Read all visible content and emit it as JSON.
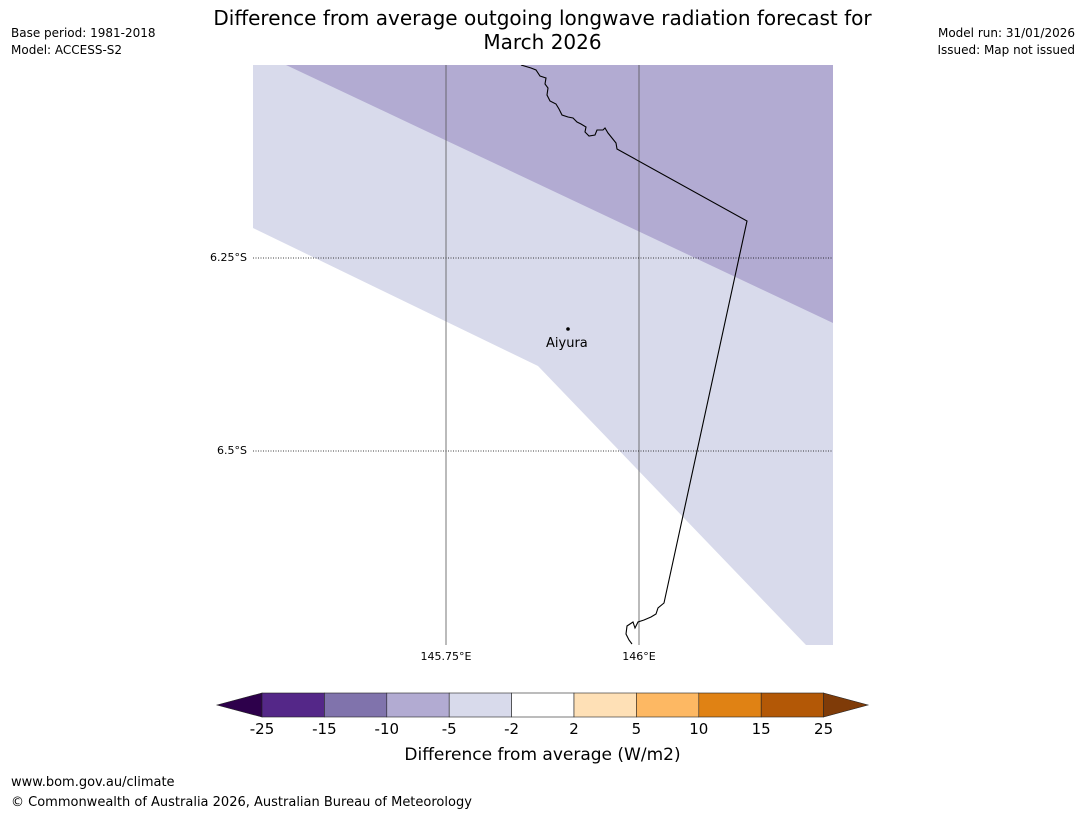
{
  "title_line1": "Difference from average outgoing longwave radiation forecast for",
  "title_line2": "March 2026",
  "base_period": "Base period: 1981-2018",
  "model": "Model: ACCESS-S2",
  "model_run": "Model run: 31/01/2026",
  "issued": "Issued: Map not issued",
  "map": {
    "latitude_labels": [
      "6.25°S",
      "6.5°S"
    ],
    "longitude_labels": [
      "145.75°E",
      "146°E"
    ],
    "place": "Aiyura"
  },
  "colorbar": {
    "label": "Difference from average (W/m2)",
    "ticks": [
      "-25",
      "-15",
      "-10",
      "-5",
      "-2",
      "2",
      "5",
      "10",
      "15",
      "25"
    ],
    "colors": {
      "below_min": "#2d004b",
      "bins": [
        "#542788",
        "#8073ac",
        "#b2abd2",
        "#d8daeb",
        "#ffffff",
        "#fee0b6",
        "#fdb863",
        "#e08214",
        "#b35806"
      ],
      "above_max": "#7f3b08"
    }
  },
  "footer": {
    "url": "www.bom.gov.au/climate",
    "copyright": "© Commonwealth of Australia 2026, Australian Bureau of Meteorology"
  }
}
